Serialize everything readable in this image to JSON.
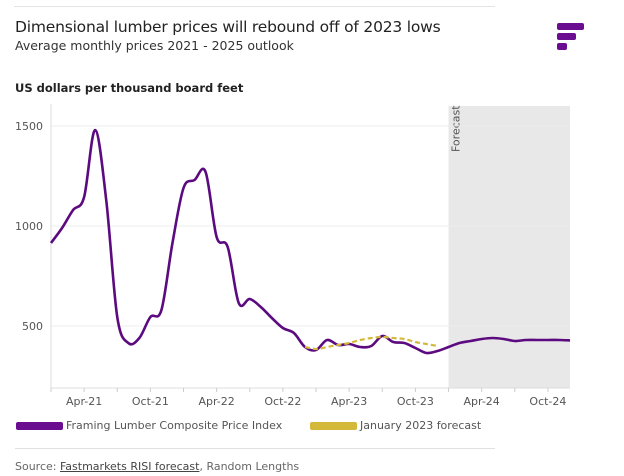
{
  "header": {
    "title": "Dimensional lumber prices will rebound off of 2023 lows",
    "subtitle": "Average monthly prices 2021 - 2025 outlook",
    "logo_color": "#6a0d91"
  },
  "footer": {
    "source_prefix": "Source: ",
    "source_link": "Fastmarkets RISI forecast",
    "source_rest": ", Random Lengths"
  },
  "chart_data": {
    "type": "line",
    "ylabel": "US dollars per thousand board feet",
    "ylim": [
      200,
      1600
    ],
    "yticks": [
      500,
      1000,
      1500
    ],
    "x_start": "Jan-21",
    "x_end": "Dec-24",
    "xtick_labels": [
      "Apr-21",
      "Oct-21",
      "Apr-22",
      "Oct-22",
      "Apr-23",
      "Oct-23",
      "Apr-24",
      "Oct-24"
    ],
    "grid": "horizontal",
    "forecast_region": {
      "label": "Forecast",
      "from": "Jan-24",
      "to": "Dec-24",
      "color": "#e8e8e8"
    },
    "legend_position": "bottom",
    "series": [
      {
        "name": "Framing Lumber Composite Price Index",
        "color": "#5c0a7f",
        "style": "solid",
        "x": [
          "Jan-21",
          "Feb-21",
          "Mar-21",
          "Apr-21",
          "May-21",
          "Jun-21",
          "Jul-21",
          "Aug-21",
          "Sep-21",
          "Oct-21",
          "Nov-21",
          "Dec-21",
          "Jan-22",
          "Feb-22",
          "Mar-22",
          "Apr-22",
          "May-22",
          "Jun-22",
          "Jul-22",
          "Aug-22",
          "Sep-22",
          "Oct-22",
          "Nov-22",
          "Dec-22",
          "Jan-23",
          "Feb-23",
          "Mar-23",
          "Apr-23",
          "May-23",
          "Jun-23",
          "Jul-23",
          "Aug-23",
          "Sep-23",
          "Oct-23",
          "Nov-23",
          "Dec-23",
          "Jan-24",
          "Feb-24",
          "Mar-24",
          "Apr-24",
          "May-24",
          "Jun-24",
          "Jul-24",
          "Aug-24",
          "Sep-24",
          "Oct-24",
          "Nov-24",
          "Dec-24"
        ],
        "values": [
          915,
          990,
          1080,
          1145,
          1480,
          1130,
          545,
          415,
          440,
          545,
          580,
          915,
          1190,
          1230,
          1270,
          945,
          895,
          615,
          635,
          595,
          540,
          490,
          465,
          395,
          380,
          430,
          405,
          410,
          395,
          400,
          450,
          420,
          415,
          390,
          365,
          375,
          395,
          415,
          425,
          435,
          440,
          435,
          425,
          430,
          430,
          430,
          430,
          428
        ]
      },
      {
        "name": "January 2023 forecast",
        "color": "#d4b83a",
        "style": "dashed",
        "x": [
          "Dec-22",
          "Jan-23",
          "Feb-23",
          "Mar-23",
          "Apr-23",
          "May-23",
          "Jun-23",
          "Jul-23",
          "Aug-23",
          "Sep-23",
          "Oct-23",
          "Nov-23",
          "Dec-23"
        ],
        "values": [
          395,
          385,
          395,
          405,
          415,
          430,
          440,
          445,
          440,
          435,
          420,
          410,
          400
        ]
      }
    ]
  }
}
